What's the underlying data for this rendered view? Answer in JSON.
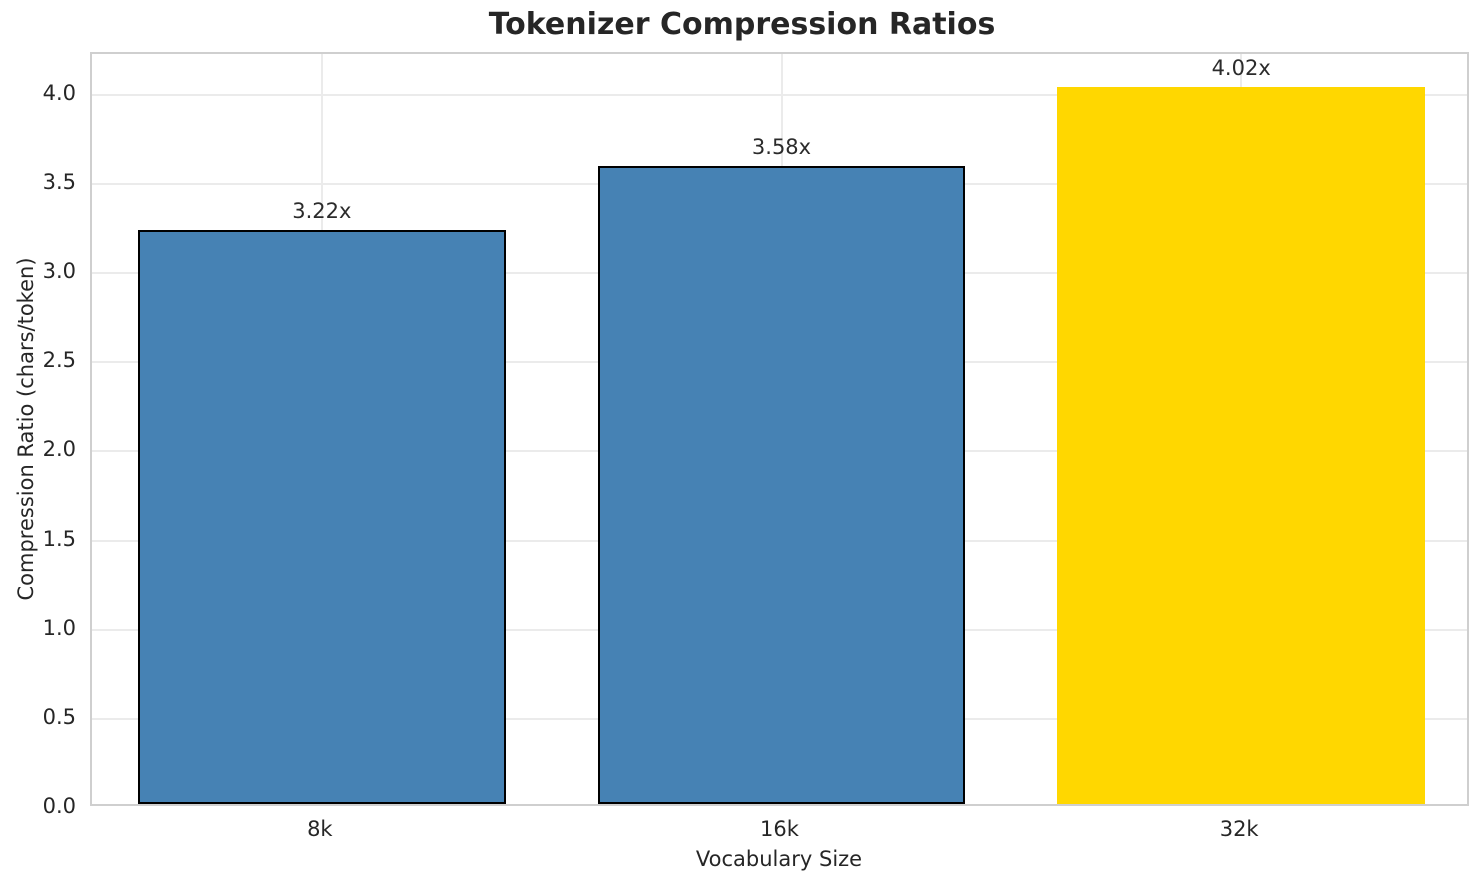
{
  "chart_data": {
    "type": "bar",
    "title": "Tokenizer Compression Ratios",
    "xlabel": "Vocabulary Size",
    "ylabel": "Compression Ratio (chars/token)",
    "categories": [
      "8k",
      "16k",
      "32k"
    ],
    "values": [
      3.22,
      3.58,
      4.02
    ],
    "bar_labels": [
      "3.22x",
      "3.58x",
      "4.02x"
    ],
    "bar_colors": [
      "#4682B4",
      "#4682B4",
      "#FFD700"
    ],
    "bar_edge_colors": [
      "#000000",
      "#000000",
      "transparent"
    ],
    "bar_width_fraction": 0.8,
    "ylim": [
      0,
      4.23
    ],
    "yticks": [
      0.0,
      0.5,
      1.0,
      1.5,
      2.0,
      2.5,
      3.0,
      3.5,
      4.0
    ],
    "ytick_labels": [
      "0.0",
      "0.5",
      "1.0",
      "1.5",
      "2.0",
      "2.5",
      "3.0",
      "3.5",
      "4.0"
    ],
    "grid": true,
    "legend": "none",
    "colors": {
      "grid": "#ebebeb",
      "spine": "#cfcfcf",
      "text": "#262626",
      "background": "#ffffff"
    }
  }
}
